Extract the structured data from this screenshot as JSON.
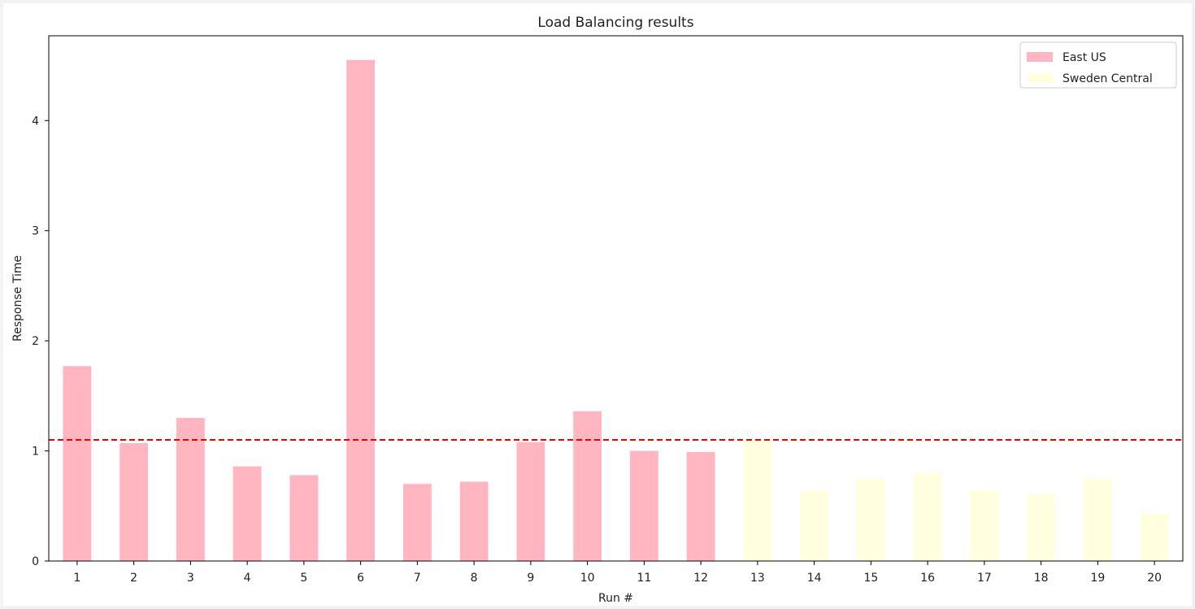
{
  "chart_data": {
    "type": "bar",
    "title": "Load Balancing results",
    "xlabel": "Run #",
    "ylabel": "Response Time",
    "ylim": [
      0,
      4.77
    ],
    "yticks": [
      0,
      1,
      2,
      3,
      4
    ],
    "categories": [
      "1",
      "2",
      "3",
      "4",
      "5",
      "6",
      "7",
      "8",
      "9",
      "10",
      "11",
      "12",
      "13",
      "14",
      "15",
      "16",
      "17",
      "18",
      "19",
      "20"
    ],
    "values": [
      1.77,
      1.07,
      1.3,
      0.86,
      0.78,
      4.55,
      0.7,
      0.72,
      1.08,
      1.36,
      1.0,
      0.99,
      1.1,
      0.64,
      0.75,
      0.8,
      0.64,
      0.61,
      0.75,
      0.43
    ],
    "region": [
      "East US",
      "East US",
      "East US",
      "East US",
      "East US",
      "East US",
      "East US",
      "East US",
      "East US",
      "East US",
      "East US",
      "East US",
      "Sweden Central",
      "Sweden Central",
      "Sweden Central",
      "Sweden Central",
      "Sweden Central",
      "Sweden Central",
      "Sweden Central",
      "Sweden Central"
    ],
    "legend": [
      {
        "name": "East US",
        "color": "#ffb6c1"
      },
      {
        "name": "Sweden Central",
        "color": "#ffffe0"
      }
    ],
    "legend_position": "top-right",
    "reference_line": {
      "value": 1.1,
      "color": "#ee0000",
      "style": "dashed"
    }
  }
}
